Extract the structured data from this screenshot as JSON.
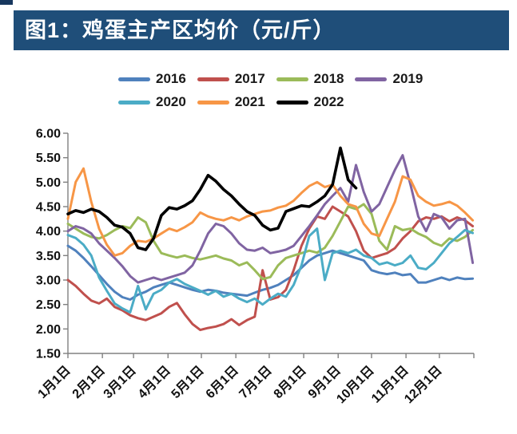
{
  "header": {
    "title": "图1：鸡蛋主产区均价（元/斤）",
    "banner_color": "#1F4E79",
    "accent_color": "#17375E"
  },
  "legend": [
    {
      "label": "2016",
      "color": "#4F81BD"
    },
    {
      "label": "2017",
      "color": "#C0504D"
    },
    {
      "label": "2018",
      "color": "#9BBB59"
    },
    {
      "label": "2019",
      "color": "#8064A2"
    },
    {
      "label": "2020",
      "color": "#4BACC6"
    },
    {
      "label": "2021",
      "color": "#F79646"
    },
    {
      "label": "2022",
      "color": "#000000"
    }
  ],
  "chart_data": {
    "type": "line",
    "title": "鸡蛋主产区均价（元/斤）",
    "xlabel": "",
    "ylabel": "",
    "ylim": [
      1.5,
      6.0
    ],
    "ytick_step": 0.5,
    "ytick_labels": [
      "6.00",
      "5.50",
      "5.00",
      "4.50",
      "4.00",
      "3.50",
      "3.00",
      "2.50",
      "2.00",
      "1.50"
    ],
    "xtick_labels": [
      "1月1日",
      "2月1日",
      "3月1日",
      "4月1日",
      "5月1日",
      "6月1日",
      "7月1日",
      "8月1日",
      "9月1日",
      "10月1日",
      "11月1日",
      "12月1日"
    ],
    "xtick_month_start_days": [
      0,
      31,
      59,
      90,
      120,
      151,
      181,
      212,
      243,
      273,
      304,
      334,
      365
    ],
    "grid": false,
    "legend_position": "top",
    "axis_color": "#808080",
    "x_unit": "day_of_year",
    "x_days": [
      0,
      7,
      14,
      21,
      28,
      35,
      42,
      49,
      56,
      63,
      70,
      77,
      84,
      91,
      98,
      105,
      112,
      119,
      126,
      133,
      140,
      147,
      154,
      161,
      168,
      175,
      182,
      189,
      196,
      203,
      210,
      217,
      224,
      231,
      238,
      245,
      252,
      259,
      266,
      273,
      280,
      287,
      294,
      301,
      308,
      315,
      322,
      329,
      336,
      343,
      350,
      357,
      364
    ],
    "series": [
      {
        "name": "2016",
        "color": "#4F81BD",
        "line_width": 3,
        "values": [
          3.7,
          3.6,
          3.45,
          3.28,
          3.1,
          2.92,
          2.76,
          2.65,
          2.6,
          2.7,
          2.76,
          2.85,
          2.9,
          2.95,
          2.9,
          2.85,
          2.8,
          2.76,
          2.8,
          2.78,
          2.74,
          2.72,
          2.7,
          2.68,
          2.74,
          2.8,
          2.84,
          2.9,
          3.0,
          3.1,
          3.25,
          3.4,
          3.5,
          3.55,
          3.6,
          3.55,
          3.5,
          3.45,
          3.4,
          3.2,
          3.15,
          3.12,
          3.15,
          3.1,
          3.12,
          2.95,
          2.95,
          3.0,
          3.05,
          3.0,
          3.05,
          3.02,
          3.03
        ]
      },
      {
        "name": "2017",
        "color": "#C0504D",
        "line_width": 3,
        "values": [
          3.0,
          2.88,
          2.72,
          2.58,
          2.52,
          2.62,
          2.45,
          2.38,
          2.28,
          2.22,
          2.18,
          2.25,
          2.32,
          2.45,
          2.53,
          2.3,
          2.1,
          1.98,
          2.02,
          2.05,
          2.1,
          2.2,
          2.08,
          2.18,
          2.25,
          3.2,
          2.6,
          2.65,
          2.8,
          3.2,
          3.7,
          4.05,
          4.3,
          4.25,
          4.5,
          4.4,
          4.3,
          4.0,
          3.6,
          3.45,
          3.5,
          3.55,
          3.65,
          3.85,
          4.0,
          4.2,
          4.28,
          4.25,
          4.3,
          4.2,
          4.28,
          4.22,
          4.1
        ]
      },
      {
        "name": "2018",
        "color": "#9BBB59",
        "line_width": 3,
        "values": [
          4.15,
          4.05,
          3.95,
          3.88,
          3.85,
          3.92,
          4.02,
          4.1,
          4.06,
          4.28,
          4.18,
          3.8,
          3.55,
          3.5,
          3.46,
          3.5,
          3.45,
          3.42,
          3.46,
          3.5,
          3.44,
          3.4,
          3.3,
          3.36,
          3.2,
          3.02,
          3.06,
          3.3,
          3.45,
          3.5,
          3.55,
          3.6,
          3.56,
          3.66,
          3.9,
          4.2,
          4.5,
          4.45,
          4.55,
          4.35,
          3.8,
          3.62,
          4.1,
          4.02,
          4.05,
          3.95,
          3.88,
          3.76,
          3.7,
          3.85,
          3.8,
          3.88,
          4.02
        ]
      },
      {
        "name": "2019",
        "color": "#8064A2",
        "line_width": 3,
        "values": [
          4.0,
          4.1,
          4.05,
          3.95,
          3.75,
          3.6,
          3.45,
          3.28,
          3.08,
          2.95,
          3.0,
          3.05,
          3.0,
          3.05,
          3.1,
          3.15,
          3.3,
          3.6,
          3.95,
          4.15,
          4.1,
          3.95,
          3.75,
          3.62,
          3.6,
          3.66,
          3.55,
          3.58,
          3.62,
          3.7,
          3.9,
          4.1,
          4.32,
          4.55,
          4.72,
          4.88,
          4.6,
          5.35,
          4.8,
          4.4,
          4.55,
          4.9,
          5.25,
          5.55,
          4.95,
          4.3,
          4.0,
          4.35,
          4.28,
          4.05,
          4.22,
          4.25,
          3.35
        ]
      },
      {
        "name": "2020",
        "color": "#4BACC6",
        "line_width": 3,
        "values": [
          3.92,
          3.86,
          3.72,
          3.5,
          3.05,
          2.78,
          2.52,
          2.42,
          2.34,
          2.88,
          2.4,
          2.72,
          2.8,
          2.95,
          3.02,
          2.92,
          2.85,
          2.78,
          2.7,
          2.78,
          2.66,
          2.72,
          2.62,
          2.55,
          2.62,
          2.5,
          2.62,
          2.72,
          2.66,
          2.9,
          3.3,
          3.9,
          4.05,
          3.0,
          3.55,
          3.6,
          3.55,
          3.62,
          3.5,
          3.45,
          3.32,
          3.36,
          3.3,
          3.35,
          3.5,
          3.25,
          3.22,
          3.35,
          3.55,
          3.75,
          3.88,
          4.02,
          3.96
        ]
      },
      {
        "name": "2021",
        "color": "#F79646",
        "line_width": 3,
        "values": [
          4.25,
          5.0,
          5.28,
          4.6,
          4.05,
          3.72,
          3.5,
          3.55,
          3.7,
          3.8,
          3.78,
          3.85,
          3.95,
          4.05,
          4.0,
          4.08,
          4.18,
          4.38,
          4.3,
          4.25,
          4.22,
          4.28,
          4.22,
          4.3,
          4.35,
          4.4,
          4.42,
          4.48,
          4.52,
          4.62,
          4.78,
          4.92,
          5.0,
          4.9,
          4.95,
          4.72,
          4.55,
          4.5,
          4.15,
          3.95,
          3.9,
          4.25,
          4.6,
          5.12,
          5.05,
          4.72,
          4.6,
          4.52,
          4.55,
          4.6,
          4.52,
          4.38,
          4.22
        ]
      },
      {
        "name": "2022",
        "color": "#000000",
        "line_width": 3.6,
        "values": [
          4.35,
          4.42,
          4.38,
          4.45,
          4.4,
          4.28,
          4.12,
          4.08,
          3.95,
          3.66,
          3.62,
          3.85,
          4.32,
          4.48,
          4.45,
          4.52,
          4.62,
          4.85,
          5.14,
          5.02,
          4.85,
          4.72,
          4.55,
          4.4,
          4.32,
          4.12,
          4.02,
          4.06,
          4.4,
          4.46,
          4.52,
          4.5,
          4.6,
          4.72,
          4.95,
          5.7,
          5.05,
          4.88
        ]
      }
    ]
  }
}
